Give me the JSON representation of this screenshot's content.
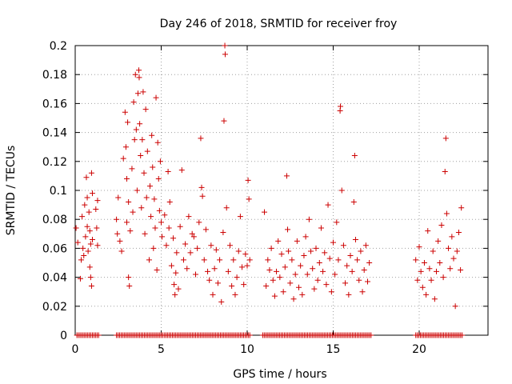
{
  "chart_data": {
    "type": "scatter",
    "title": "Day 246 of 2018, SRMTID for receiver froy",
    "xlabel": "GPS time / hours",
    "ylabel": "SRMTID / TECUs",
    "xlim": [
      0,
      24
    ],
    "ylim": [
      0,
      0.2
    ],
    "grid": true,
    "marker": "+",
    "color": "#cc0000",
    "xticks": [
      {
        "value": 0,
        "label": "0"
      },
      {
        "value": 5,
        "label": "5"
      },
      {
        "value": 10,
        "label": "10"
      },
      {
        "value": 15,
        "label": "15"
      },
      {
        "value": 20,
        "label": "20"
      }
    ],
    "yticks": [
      {
        "value": 0,
        "label": "0"
      },
      {
        "value": 0.02,
        "label": "0.02"
      },
      {
        "value": 0.04,
        "label": "0.04"
      },
      {
        "value": 0.06,
        "label": "0.06"
      },
      {
        "value": 0.08,
        "label": "0.08"
      },
      {
        "value": 0.1,
        "label": "0.1"
      },
      {
        "value": 0.12,
        "label": "0.12"
      },
      {
        "value": 0.14,
        "label": "0.14"
      },
      {
        "value": 0.16,
        "label": "0.16"
      },
      {
        "value": 0.18,
        "label": "0.18"
      },
      {
        "value": 0.2,
        "label": "0.2"
      }
    ],
    "series": [
      {
        "name": "SRMTID",
        "points": [
          [
            0.05,
            0.074
          ],
          [
            0.15,
            0.064
          ],
          [
            0.3,
            0.039
          ],
          [
            0.35,
            0.052
          ],
          [
            0.4,
            0.082
          ],
          [
            0.45,
            0.06
          ],
          [
            0.5,
            0.055
          ],
          [
            0.55,
            0.09
          ],
          [
            0.6,
            0.068
          ],
          [
            0.65,
            0.109
          ],
          [
            0.7,
            0.095
          ],
          [
            0.7,
            0.075
          ],
          [
            0.75,
            0.058
          ],
          [
            0.8,
            0.085
          ],
          [
            0.85,
            0.072
          ],
          [
            0.85,
            0.047
          ],
          [
            0.9,
            0.063
          ],
          [
            0.9,
            0.04
          ],
          [
            0.95,
            0.112
          ],
          [
            1.0,
            0.098
          ],
          [
            1.0,
            0.066
          ],
          [
            0.95,
            0.034
          ],
          [
            1.2,
            0.087
          ],
          [
            1.25,
            0.074
          ],
          [
            1.3,
            0.093
          ],
          [
            1.3,
            0.062
          ],
          [
            2.4,
            0.08
          ],
          [
            2.45,
            0.07
          ],
          [
            2.5,
            0.095
          ],
          [
            2.6,
            0.065
          ],
          [
            2.7,
            0.058
          ],
          [
            2.8,
            0.122
          ],
          [
            2.9,
            0.154
          ],
          [
            2.95,
            0.13
          ],
          [
            3.0,
            0.108
          ],
          [
            3.0,
            0.078
          ],
          [
            3.05,
            0.147
          ],
          [
            3.1,
            0.092
          ],
          [
            3.1,
            0.04
          ],
          [
            3.15,
            0.034
          ],
          [
            3.2,
            0.072
          ],
          [
            3.3,
            0.115
          ],
          [
            3.35,
            0.085
          ],
          [
            3.4,
            0.161
          ],
          [
            3.45,
            0.135
          ],
          [
            3.5,
            0.18
          ],
          [
            3.55,
            0.142
          ],
          [
            3.6,
            0.1
          ],
          [
            3.65,
            0.167
          ],
          [
            3.7,
            0.183
          ],
          [
            3.72,
            0.178
          ],
          [
            3.75,
            0.146
          ],
          [
            3.8,
            0.124
          ],
          [
            3.85,
            0.088
          ],
          [
            3.9,
            0.135
          ],
          [
            3.95,
            0.168
          ],
          [
            4.0,
            0.112
          ],
          [
            4.05,
            0.07
          ],
          [
            4.1,
            0.156
          ],
          [
            4.15,
            0.095
          ],
          [
            4.2,
            0.127
          ],
          [
            4.3,
            0.052
          ],
          [
            4.35,
            0.103
          ],
          [
            4.4,
            0.082
          ],
          [
            4.45,
            0.138
          ],
          [
            4.5,
            0.116
          ],
          [
            4.55,
            0.06
          ],
          [
            4.6,
            0.094
          ],
          [
            4.65,
            0.074
          ],
          [
            4.7,
            0.164
          ],
          [
            4.75,
            0.045
          ],
          [
            4.8,
            0.133
          ],
          [
            4.85,
            0.108
          ],
          [
            4.9,
            0.086
          ],
          [
            4.95,
            0.12
          ],
          [
            5.0,
            0.078
          ],
          [
            5.05,
            0.068
          ],
          [
            5.2,
            0.083
          ],
          [
            5.3,
            0.062
          ],
          [
            5.4,
            0.113
          ],
          [
            5.45,
            0.074
          ],
          [
            5.5,
            0.092
          ],
          [
            5.6,
            0.048
          ],
          [
            5.7,
            0.067
          ],
          [
            5.75,
            0.035
          ],
          [
            5.8,
            0.028
          ],
          [
            5.85,
            0.043
          ],
          [
            5.9,
            0.057
          ],
          [
            6.0,
            0.032
          ],
          [
            6.1,
            0.075
          ],
          [
            6.2,
            0.114
          ],
          [
            6.3,
            0.052
          ],
          [
            6.4,
            0.063
          ],
          [
            6.5,
            0.046
          ],
          [
            6.6,
            0.082
          ],
          [
            6.7,
            0.057
          ],
          [
            6.8,
            0.07
          ],
          [
            6.9,
            0.068
          ],
          [
            7.0,
            0.042
          ],
          [
            7.1,
            0.06
          ],
          [
            7.2,
            0.078
          ],
          [
            7.3,
            0.136
          ],
          [
            7.35,
            0.102
          ],
          [
            7.4,
            0.096
          ],
          [
            7.5,
            0.052
          ],
          [
            7.6,
            0.073
          ],
          [
            7.7,
            0.044
          ],
          [
            7.8,
            0.038
          ],
          [
            7.9,
            0.062
          ],
          [
            8.0,
            0.028
          ],
          [
            8.1,
            0.046
          ],
          [
            8.2,
            0.059
          ],
          [
            8.3,
            0.036
          ],
          [
            8.4,
            0.052
          ],
          [
            8.5,
            0.023
          ],
          [
            8.6,
            0.071
          ],
          [
            8.65,
            0.148
          ],
          [
            8.7,
            0.2
          ],
          [
            8.72,
            0.194
          ],
          [
            8.8,
            0.088
          ],
          [
            8.9,
            0.044
          ],
          [
            9.0,
            0.062
          ],
          [
            9.1,
            0.034
          ],
          [
            9.2,
            0.052
          ],
          [
            9.3,
            0.028
          ],
          [
            9.4,
            0.04
          ],
          [
            9.5,
            0.058
          ],
          [
            9.6,
            0.082
          ],
          [
            9.7,
            0.047
          ],
          [
            9.8,
            0.035
          ],
          [
            9.9,
            0.056
          ],
          [
            10.0,
            0.048
          ],
          [
            10.05,
            0.107
          ],
          [
            10.1,
            0.094
          ],
          [
            10.15,
            0.052
          ],
          [
            11.0,
            0.085
          ],
          [
            11.1,
            0.034
          ],
          [
            11.2,
            0.052
          ],
          [
            11.3,
            0.045
          ],
          [
            11.4,
            0.06
          ],
          [
            11.5,
            0.038
          ],
          [
            11.6,
            0.027
          ],
          [
            11.7,
            0.044
          ],
          [
            11.8,
            0.065
          ],
          [
            11.9,
            0.04
          ],
          [
            12.0,
            0.056
          ],
          [
            12.1,
            0.03
          ],
          [
            12.2,
            0.047
          ],
          [
            12.3,
            0.11
          ],
          [
            12.35,
            0.073
          ],
          [
            12.4,
            0.058
          ],
          [
            12.5,
            0.036
          ],
          [
            12.6,
            0.052
          ],
          [
            12.7,
            0.025
          ],
          [
            12.8,
            0.042
          ],
          [
            12.9,
            0.065
          ],
          [
            13.0,
            0.033
          ],
          [
            13.1,
            0.048
          ],
          [
            13.2,
            0.028
          ],
          [
            13.3,
            0.055
          ],
          [
            13.4,
            0.068
          ],
          [
            13.5,
            0.042
          ],
          [
            13.6,
            0.08
          ],
          [
            13.7,
            0.058
          ],
          [
            13.8,
            0.046
          ],
          [
            13.9,
            0.032
          ],
          [
            14.0,
            0.06
          ],
          [
            14.1,
            0.038
          ],
          [
            14.2,
            0.05
          ],
          [
            14.3,
            0.074
          ],
          [
            14.4,
            0.044
          ],
          [
            14.5,
            0.057
          ],
          [
            14.6,
            0.035
          ],
          [
            14.7,
            0.09
          ],
          [
            14.8,
            0.053
          ],
          [
            14.9,
            0.03
          ],
          [
            15.0,
            0.064
          ],
          [
            15.1,
            0.042
          ],
          [
            15.2,
            0.078
          ],
          [
            15.3,
            0.052
          ],
          [
            15.4,
            0.155
          ],
          [
            15.42,
            0.158
          ],
          [
            15.5,
            0.1
          ],
          [
            15.6,
            0.062
          ],
          [
            15.7,
            0.036
          ],
          [
            15.8,
            0.048
          ],
          [
            15.9,
            0.028
          ],
          [
            16.0,
            0.055
          ],
          [
            16.1,
            0.044
          ],
          [
            16.2,
            0.092
          ],
          [
            16.25,
            0.124
          ],
          [
            16.3,
            0.066
          ],
          [
            16.4,
            0.052
          ],
          [
            16.5,
            0.038
          ],
          [
            16.6,
            0.058
          ],
          [
            16.7,
            0.03
          ],
          [
            16.8,
            0.045
          ],
          [
            16.9,
            0.062
          ],
          [
            17.0,
            0.037
          ],
          [
            17.1,
            0.05
          ],
          [
            19.8,
            0.052
          ],
          [
            19.9,
            0.038
          ],
          [
            20.0,
            0.061
          ],
          [
            20.1,
            0.044
          ],
          [
            20.2,
            0.033
          ],
          [
            20.3,
            0.05
          ],
          [
            20.4,
            0.028
          ],
          [
            20.5,
            0.072
          ],
          [
            20.6,
            0.046
          ],
          [
            20.7,
            0.038
          ],
          [
            20.8,
            0.058
          ],
          [
            20.9,
            0.025
          ],
          [
            21.0,
            0.044
          ],
          [
            21.1,
            0.065
          ],
          [
            21.2,
            0.05
          ],
          [
            21.3,
            0.076
          ],
          [
            21.4,
            0.04
          ],
          [
            21.5,
            0.113
          ],
          [
            21.55,
            0.136
          ],
          [
            21.6,
            0.084
          ],
          [
            21.7,
            0.06
          ],
          [
            21.8,
            0.046
          ],
          [
            21.9,
            0.068
          ],
          [
            22.0,
            0.053
          ],
          [
            22.1,
            0.02
          ],
          [
            22.2,
            0.058
          ],
          [
            22.3,
            0.071
          ],
          [
            22.4,
            0.045
          ],
          [
            22.45,
            0.088
          ]
        ]
      }
    ]
  }
}
